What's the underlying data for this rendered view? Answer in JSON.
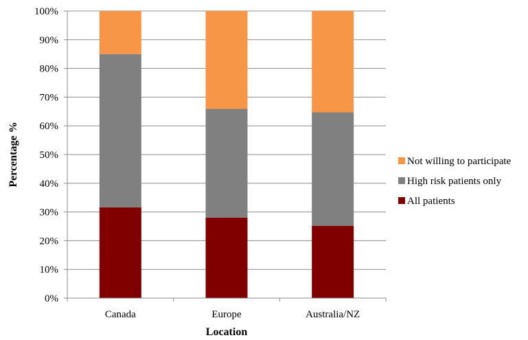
{
  "chart_data": {
    "type": "bar",
    "stacked": true,
    "title": "",
    "xlabel": "Location",
    "ylabel": "Percentage %",
    "categories": [
      "Canada",
      "Europe",
      "Australia/NZ"
    ],
    "series": [
      {
        "name": "All patients",
        "color": "#800000",
        "values": [
          31.6,
          28.0,
          25.2
        ]
      },
      {
        "name": "High risk patients only",
        "color": "#808080",
        "values": [
          53.4,
          37.9,
          39.5
        ]
      },
      {
        "name": "Not willing to participate",
        "color": "#f79646",
        "values": [
          15.0,
          34.1,
          35.3
        ]
      }
    ],
    "ylim": [
      0,
      100
    ],
    "yticks": [
      "0%",
      "10%",
      "20%",
      "30%",
      "40%",
      "50%",
      "60%",
      "70%",
      "80%",
      "90%",
      "100%"
    ],
    "grid": true,
    "legend_position": "right",
    "legend_order": [
      "Not willing to participate",
      "High risk patients only",
      "All patients"
    ]
  }
}
